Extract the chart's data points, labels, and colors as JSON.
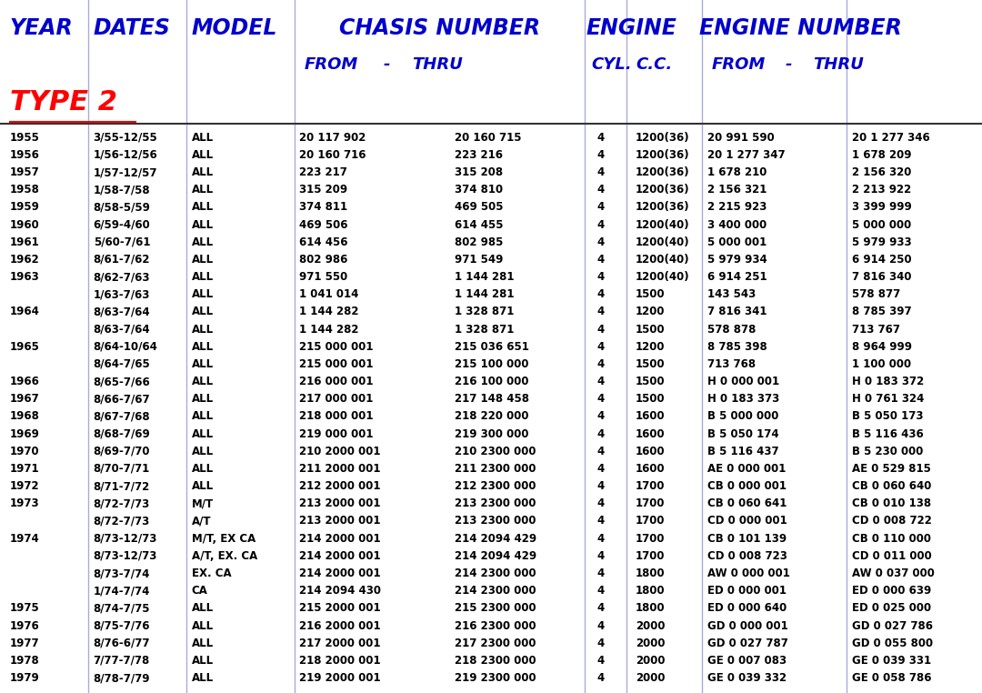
{
  "bg_color": "#ffffff",
  "header_color": "#0000cc",
  "section_color": "#ff0000",
  "text_color": "#000000",
  "vline_x": [
    0.09,
    0.19,
    0.3,
    0.595,
    0.638,
    0.715,
    0.862
  ],
  "col_x": {
    "year": 0.01,
    "dates": 0.095,
    "model": 0.195,
    "chassis_from": 0.305,
    "chassis_thru": 0.463,
    "cyl": 0.602,
    "cc": 0.645,
    "eng_from": 0.72,
    "eng_thru": 0.868
  },
  "header1": {
    "YEAR": 0.01,
    "DATES": 0.095,
    "MODEL": 0.195,
    "CHASIS NUMBER": 0.345,
    "ENGINE": 0.597,
    "ENGINE NUMBER": 0.712
  },
  "header2": {
    "FROM_c": 0.31,
    "dash_c": 0.39,
    "THRU_c": 0.42,
    "CYL": 0.602,
    "CC": 0.648,
    "FROM_e": 0.725,
    "dash_e": 0.8,
    "THRU_e": 0.828
  },
  "rows": [
    [
      "1955",
      "3/55-12/55",
      "ALL",
      "20 117 902",
      "20 160 715",
      "4",
      "1200(36)",
      "20 991 590",
      "20 1 277 346"
    ],
    [
      "1956",
      "1/56-12/56",
      "ALL",
      "20 160 716",
      "223 216",
      "4",
      "1200(36)",
      "20 1 277 347",
      "1 678 209"
    ],
    [
      "1957",
      "1/57-12/57",
      "ALL",
      "223 217",
      "315 208",
      "4",
      "1200(36)",
      "1 678 210",
      "2 156 320"
    ],
    [
      "1958",
      "1/58-7/58",
      "ALL",
      "315 209",
      "374 810",
      "4",
      "1200(36)",
      "2 156 321",
      "2 213 922"
    ],
    [
      "1959",
      "8/58-5/59",
      "ALL",
      "374 811",
      "469 505",
      "4",
      "1200(36)",
      "2 215 923",
      "3 399 999"
    ],
    [
      "1960",
      "6/59-4/60",
      "ALL",
      "469 506",
      "614 455",
      "4",
      "1200(40)",
      "3 400 000",
      "5 000 000"
    ],
    [
      "1961",
      "5/60-7/61",
      "ALL",
      "614 456",
      "802 985",
      "4",
      "1200(40)",
      "5 000 001",
      "5 979 933"
    ],
    [
      "1962",
      "8/61-7/62",
      "ALL",
      "802 986",
      "971 549",
      "4",
      "1200(40)",
      "5 979 934",
      "6 914 250"
    ],
    [
      "1963",
      "8/62-7/63",
      "ALL",
      "971 550",
      "1 144 281",
      "4",
      "1200(40)",
      "6 914 251",
      "7 816 340"
    ],
    [
      "",
      "1/63-7/63",
      "ALL",
      "1 041 014",
      "1 144 281",
      "4",
      "1500",
      "143 543",
      "578 877"
    ],
    [
      "1964",
      "8/63-7/64",
      "ALL",
      "1 144 282",
      "1 328 871",
      "4",
      "1200",
      "7 816 341",
      "8 785 397"
    ],
    [
      "",
      "8/63-7/64",
      "ALL",
      "1 144 282",
      "1 328 871",
      "4",
      "1500",
      "578 878",
      "713 767"
    ],
    [
      "1965",
      "8/64-10/64",
      "ALL",
      "215 000 001",
      "215 036 651",
      "4",
      "1200",
      "8 785 398",
      "8 964 999"
    ],
    [
      "",
      "8/64-7/65",
      "ALL",
      "215 000 001",
      "215 100 000",
      "4",
      "1500",
      "713 768",
      "1 100 000"
    ],
    [
      "1966",
      "8/65-7/66",
      "ALL",
      "216 000 001",
      "216 100 000",
      "4",
      "1500",
      "H 0 000 001",
      "H 0 183 372"
    ],
    [
      "1967",
      "8/66-7/67",
      "ALL",
      "217 000 001",
      "217 148 458",
      "4",
      "1500",
      "H 0 183 373",
      "H 0 761 324"
    ],
    [
      "1968",
      "8/67-7/68",
      "ALL",
      "218 000 001",
      "218 220 000",
      "4",
      "1600",
      "B 5 000 000",
      "B 5 050 173"
    ],
    [
      "1969",
      "8/68-7/69",
      "ALL",
      "219 000 001",
      "219 300 000",
      "4",
      "1600",
      "B 5 050 174",
      "B 5 116 436"
    ],
    [
      "1970",
      "8/69-7/70",
      "ALL",
      "210 2000 001",
      "210 2300 000",
      "4",
      "1600",
      "B 5 116 437",
      "B 5 230 000"
    ],
    [
      "1971",
      "8/70-7/71",
      "ALL",
      "211 2000 001",
      "211 2300 000",
      "4",
      "1600",
      "AE 0 000 001",
      "AE 0 529 815"
    ],
    [
      "1972",
      "8/71-7/72",
      "ALL",
      "212 2000 001",
      "212 2300 000",
      "4",
      "1700",
      "CB 0 000 001",
      "CB 0 060 640"
    ],
    [
      "1973",
      "8/72-7/73",
      "M/T",
      "213 2000 001",
      "213 2300 000",
      "4",
      "1700",
      "CB 0 060 641",
      "CB 0 010 138"
    ],
    [
      "",
      "8/72-7/73",
      "A/T",
      "213 2000 001",
      "213 2300 000",
      "4",
      "1700",
      "CD 0 000 001",
      "CD 0 008 722"
    ],
    [
      "1974",
      "8/73-12/73",
      "M/T, EX CA",
      "214 2000 001",
      "214 2094 429",
      "4",
      "1700",
      "CB 0 101 139",
      "CB 0 110 000"
    ],
    [
      "",
      "8/73-12/73",
      "A/T, EX. CA",
      "214 2000 001",
      "214 2094 429",
      "4",
      "1700",
      "CD 0 008 723",
      "CD 0 011 000"
    ],
    [
      "",
      "8/73-7/74",
      "EX. CA",
      "214 2000 001",
      "214 2300 000",
      "4",
      "1800",
      "AW 0 000 001",
      "AW 0 037 000"
    ],
    [
      "",
      "1/74-7/74",
      "CA",
      "214 2094 430",
      "214 2300 000",
      "4",
      "1800",
      "ED 0 000 001",
      "ED 0 000 639"
    ],
    [
      "1975",
      "8/74-7/75",
      "ALL",
      "215 2000 001",
      "215 2300 000",
      "4",
      "1800",
      "ED 0 000 640",
      "ED 0 025 000"
    ],
    [
      "1976",
      "8/75-7/76",
      "ALL",
      "216 2000 001",
      "216 2300 000",
      "4",
      "2000",
      "GD 0 000 001",
      "GD 0 027 786"
    ],
    [
      "1977",
      "8/76-6/77",
      "ALL",
      "217 2000 001",
      "217 2300 000",
      "4",
      "2000",
      "GD 0 027 787",
      "GD 0 055 800"
    ],
    [
      "1978",
      "7/77-7/78",
      "ALL",
      "218 2000 001",
      "218 2300 000",
      "4",
      "2000",
      "GE 0 007 083",
      "GE 0 039 331"
    ],
    [
      "1979",
      "8/78-7/79",
      "ALL",
      "219 2000 001",
      "219 2300 000",
      "4",
      "2000",
      "GE 0 039 332",
      "GE 0 058 786"
    ]
  ]
}
